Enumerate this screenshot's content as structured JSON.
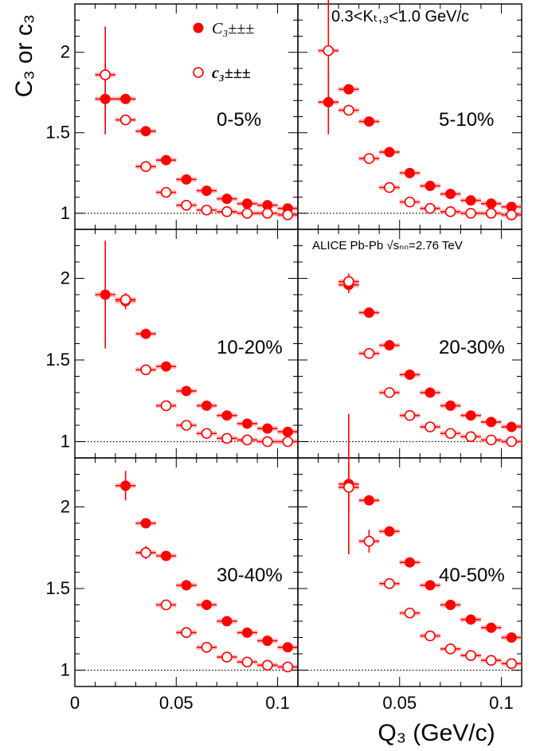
{
  "figure": {
    "y_axis_title": "C₃ or c₃",
    "x_axis_title": "Q₃ (GeV/c)",
    "kt_range_label": "0.3<Kₜ,₃<1.0 GeV/c",
    "experiment_label": "ALICE Pb-Pb √sₙₙ=2.76 TeV",
    "legend": {
      "filled_label": "C₃±±±",
      "open_label": "c₃±±±"
    },
    "colors": {
      "marker": "#ff0000",
      "syst_band": "#ff8a8a",
      "reference_line": "#000000"
    }
  },
  "chart_data": [
    {
      "type": "scatter",
      "panel_label": "0-5%",
      "xlim": [
        0,
        0.11
      ],
      "ylim": [
        0.9,
        2.3
      ],
      "x_ticks": [
        0,
        0.05,
        0.1
      ],
      "y_ticks": [
        1,
        1.5,
        2
      ],
      "reference_line_y": 1,
      "series": [
        {
          "name": "C₃±±±",
          "marker": "filled",
          "x": [
            0.015,
            0.025,
            0.035,
            0.045,
            0.055,
            0.065,
            0.075,
            0.085,
            0.095,
            0.105
          ],
          "y": [
            1.71,
            1.71,
            1.51,
            1.33,
            1.21,
            1.14,
            1.09,
            1.06,
            1.05,
            1.03
          ],
          "err": [
            0.22,
            0.02,
            0.01,
            0.01,
            0.01,
            0.01,
            0.01,
            0.01,
            0.01,
            0.01
          ]
        },
        {
          "name": "c₃±±±",
          "marker": "open",
          "x": [
            0.015,
            0.025,
            0.035,
            0.045,
            0.055,
            0.065,
            0.075,
            0.085,
            0.095,
            0.105
          ],
          "y": [
            1.86,
            1.58,
            1.29,
            1.13,
            1.05,
            1.02,
            1.01,
            1.0,
            1.0,
            0.99
          ],
          "err": [
            0.3,
            0.02,
            0.01,
            0.01,
            0.01,
            0.01,
            0.01,
            0.01,
            0.01,
            0.01
          ]
        }
      ]
    },
    {
      "type": "scatter",
      "panel_label": "5-10%",
      "xlim": [
        0,
        0.11
      ],
      "ylim": [
        0.9,
        2.3
      ],
      "x_ticks": [
        0,
        0.05,
        0.1
      ],
      "y_ticks": [
        1,
        1.5,
        2
      ],
      "reference_line_y": 1,
      "series": [
        {
          "name": "C₃±±±",
          "marker": "filled",
          "x": [
            0.015,
            0.025,
            0.035,
            0.045,
            0.055,
            0.065,
            0.075,
            0.085,
            0.095,
            0.105
          ],
          "y": [
            1.69,
            1.77,
            1.57,
            1.38,
            1.25,
            1.17,
            1.12,
            1.08,
            1.06,
            1.04
          ],
          "err": [
            0.2,
            0.02,
            0.01,
            0.01,
            0.01,
            0.01,
            0.01,
            0.01,
            0.01,
            0.01
          ]
        },
        {
          "name": "c₃±±±",
          "marker": "open",
          "x": [
            0.015,
            0.025,
            0.035,
            0.045,
            0.055,
            0.065,
            0.075,
            0.085,
            0.095,
            0.105
          ],
          "y": [
            2.01,
            1.64,
            1.34,
            1.16,
            1.07,
            1.03,
            1.01,
            1.0,
            1.0,
            0.99
          ],
          "err": [
            0.35,
            0.02,
            0.01,
            0.01,
            0.01,
            0.01,
            0.01,
            0.01,
            0.01,
            0.01
          ]
        }
      ]
    },
    {
      "type": "scatter",
      "panel_label": "10-20%",
      "xlim": [
        0,
        0.11
      ],
      "ylim": [
        0.9,
        2.3
      ],
      "x_ticks": [
        0,
        0.05,
        0.1
      ],
      "y_ticks": [
        1,
        1.5,
        2
      ],
      "reference_line_y": 1,
      "series": [
        {
          "name": "C₃±±±",
          "marker": "filled",
          "x": [
            0.015,
            0.025,
            0.035,
            0.045,
            0.055,
            0.065,
            0.075,
            0.085,
            0.095,
            0.105
          ],
          "y": [
            1.9,
            1.86,
            1.66,
            1.46,
            1.31,
            1.22,
            1.16,
            1.11,
            1.08,
            1.06
          ],
          "err": [
            0.33,
            0.05,
            0.01,
            0.01,
            0.01,
            0.01,
            0.01,
            0.01,
            0.01,
            0.01
          ]
        },
        {
          "name": "c₃±±±",
          "marker": "open",
          "x": [
            0.025,
            0.035,
            0.045,
            0.055,
            0.065,
            0.075,
            0.085,
            0.095,
            0.105
          ],
          "y": [
            1.87,
            1.44,
            1.22,
            1.1,
            1.05,
            1.02,
            1.01,
            1.0,
            1.0
          ],
          "err": [
            0.02,
            0.01,
            0.01,
            0.01,
            0.01,
            0.01,
            0.01,
            0.01,
            0.01
          ]
        }
      ]
    },
    {
      "type": "scatter",
      "panel_label": "20-30%",
      "xlim": [
        0,
        0.11
      ],
      "ylim": [
        0.9,
        2.3
      ],
      "x_ticks": [
        0,
        0.05,
        0.1
      ],
      "y_ticks": [
        1,
        1.5,
        2
      ],
      "reference_line_y": 1,
      "series": [
        {
          "name": "C₃±±±",
          "marker": "filled",
          "x": [
            0.025,
            0.035,
            0.045,
            0.055,
            0.065,
            0.075,
            0.085,
            0.095,
            0.105
          ],
          "y": [
            1.96,
            1.79,
            1.59,
            1.41,
            1.3,
            1.22,
            1.16,
            1.12,
            1.09
          ],
          "err": [
            0.05,
            0.02,
            0.01,
            0.01,
            0.01,
            0.01,
            0.01,
            0.01,
            0.01
          ]
        },
        {
          "name": "c₃±±±",
          "marker": "open",
          "x": [
            0.025,
            0.035,
            0.045,
            0.055,
            0.065,
            0.075,
            0.085,
            0.095,
            0.105
          ],
          "y": [
            1.98,
            1.54,
            1.3,
            1.16,
            1.09,
            1.05,
            1.03,
            1.01,
            1.0
          ],
          "err": [
            0.05,
            0.02,
            0.01,
            0.01,
            0.01,
            0.01,
            0.01,
            0.01,
            0.01
          ]
        }
      ]
    },
    {
      "type": "scatter",
      "panel_label": "30-40%",
      "xlim": [
        0,
        0.11
      ],
      "ylim": [
        0.9,
        2.3
      ],
      "x_ticks": [
        0,
        0.05,
        0.1
      ],
      "y_ticks": [
        1,
        1.5,
        2
      ],
      "reference_line_y": 1,
      "series": [
        {
          "name": "C₃±±±",
          "marker": "filled",
          "x": [
            0.025,
            0.035,
            0.045,
            0.055,
            0.065,
            0.075,
            0.085,
            0.095,
            0.105
          ],
          "y": [
            2.13,
            1.9,
            1.7,
            1.52,
            1.4,
            1.3,
            1.23,
            1.18,
            1.14
          ],
          "err": [
            0.09,
            0.02,
            0.01,
            0.01,
            0.01,
            0.01,
            0.01,
            0.01,
            0.01
          ]
        },
        {
          "name": "c₃±±±",
          "marker": "open",
          "x": [
            0.035,
            0.045,
            0.055,
            0.065,
            0.075,
            0.085,
            0.095,
            0.105
          ],
          "y": [
            1.72,
            1.4,
            1.23,
            1.14,
            1.08,
            1.05,
            1.03,
            1.02
          ],
          "err": [
            0.04,
            0.02,
            0.01,
            0.01,
            0.01,
            0.01,
            0.01,
            0.01
          ]
        }
      ]
    },
    {
      "type": "scatter",
      "panel_label": "40-50%",
      "xlim": [
        0,
        0.11
      ],
      "ylim": [
        0.9,
        2.3
      ],
      "x_ticks": [
        0,
        0.05,
        0.1
      ],
      "y_ticks": [
        1,
        1.5,
        2
      ],
      "reference_line_y": 1,
      "series": [
        {
          "name": "C₃±±±",
          "marker": "filled",
          "x": [
            0.025,
            0.035,
            0.045,
            0.055,
            0.065,
            0.075,
            0.085,
            0.095,
            0.105
          ],
          "y": [
            2.14,
            2.04,
            1.85,
            1.66,
            1.52,
            1.4,
            1.31,
            1.26,
            1.2
          ],
          "err": [
            0.43,
            0.03,
            0.01,
            0.01,
            0.01,
            0.01,
            0.01,
            0.01,
            0.01
          ]
        },
        {
          "name": "c₃±±±",
          "marker": "open",
          "x": [
            0.025,
            0.035,
            0.045,
            0.055,
            0.065,
            0.075,
            0.085,
            0.095,
            0.105
          ],
          "y": [
            2.12,
            1.79,
            1.53,
            1.35,
            1.21,
            1.13,
            1.09,
            1.06,
            1.04
          ],
          "err": [
            0.15,
            0.07,
            0.01,
            0.01,
            0.01,
            0.01,
            0.01,
            0.01,
            0.01
          ]
        }
      ]
    }
  ]
}
